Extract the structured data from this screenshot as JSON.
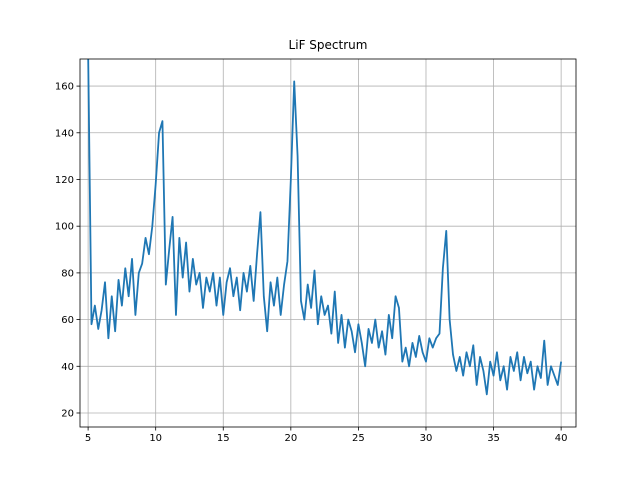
{
  "chart_data": {
    "type": "line",
    "title": "LiF Spectrum",
    "x": [
      5,
      5.25,
      5.5,
      5.75,
      6,
      6.25,
      6.5,
      6.75,
      7,
      7.25,
      7.5,
      7.75,
      8,
      8.25,
      8.5,
      8.75,
      9,
      9.25,
      9.5,
      9.75,
      10,
      10.25,
      10.5,
      10.75,
      11,
      11.25,
      11.5,
      11.75,
      12,
      12.25,
      12.5,
      12.75,
      13,
      13.25,
      13.5,
      13.75,
      14,
      14.25,
      14.5,
      14.75,
      15,
      15.25,
      15.5,
      15.75,
      16,
      16.25,
      16.5,
      16.75,
      17,
      17.25,
      17.5,
      17.75,
      18,
      18.25,
      18.5,
      18.75,
      19,
      19.25,
      19.5,
      19.75,
      20,
      20.25,
      20.5,
      20.75,
      21,
      21.25,
      21.5,
      21.75,
      22,
      22.25,
      22.5,
      22.75,
      23,
      23.25,
      23.5,
      23.75,
      24,
      24.25,
      24.5,
      24.75,
      25,
      25.25,
      25.5,
      25.75,
      26,
      26.25,
      26.5,
      26.75,
      27,
      27.25,
      27.5,
      27.75,
      28,
      28.25,
      28.5,
      28.75,
      29,
      29.25,
      29.5,
      29.75,
      30,
      30.25,
      30.5,
      30.75,
      31,
      31.25,
      31.5,
      31.75,
      32,
      32.25,
      32.5,
      32.75,
      33,
      33.25,
      33.5,
      33.75,
      34,
      34.25,
      34.5,
      34.75,
      35,
      35.25,
      35.5,
      35.75,
      36,
      36.25,
      36.5,
      36.75,
      37,
      37.25,
      37.5,
      37.75,
      38,
      38.25,
      38.5,
      38.75,
      39,
      39.25,
      39.5,
      39.75,
      40
    ],
    "values": [
      175,
      58,
      66,
      56,
      64,
      76,
      52,
      70,
      55,
      77,
      66,
      82,
      70,
      86,
      62,
      80,
      84,
      95,
      88,
      100,
      118,
      140,
      145,
      75,
      90,
      104,
      62,
      95,
      78,
      93,
      72,
      86,
      75,
      80,
      65,
      78,
      72,
      80,
      66,
      78,
      62,
      76,
      82,
      70,
      78,
      64,
      80,
      72,
      83,
      68,
      88,
      106,
      70,
      55,
      76,
      66,
      78,
      62,
      75,
      85,
      120,
      162,
      130,
      68,
      60,
      75,
      65,
      81,
      58,
      70,
      62,
      66,
      54,
      72,
      50,
      62,
      48,
      60,
      55,
      46,
      58,
      50,
      40,
      56,
      50,
      60,
      48,
      55,
      45,
      62,
      52,
      70,
      65,
      42,
      48,
      40,
      50,
      44,
      53,
      46,
      42,
      52,
      48,
      52,
      54,
      82,
      98,
      60,
      45,
      38,
      44,
      36,
      46,
      40,
      49,
      32,
      44,
      38,
      28,
      42,
      36,
      46,
      34,
      40,
      30,
      44,
      38,
      46,
      34,
      44,
      37,
      42,
      30,
      40,
      35,
      51,
      32,
      40,
      36,
      32,
      42
    ],
    "color": "#1f77b4",
    "xlim": [
      4.4,
      41.1
    ],
    "ylim": [
      14,
      171.6
    ],
    "xticks": [
      5,
      10,
      15,
      20,
      25,
      30,
      35,
      40
    ],
    "yticks": [
      20,
      40,
      60,
      80,
      100,
      120,
      140,
      160
    ],
    "grid": true
  }
}
